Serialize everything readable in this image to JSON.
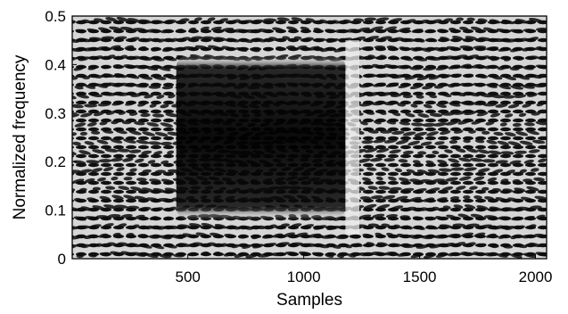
{
  "chart_data": {
    "type": "heatmap",
    "title": "",
    "xlabel": "Samples",
    "ylabel": "Normalized frequency",
    "xlim": [
      1,
      2048
    ],
    "ylim": [
      0,
      0.5
    ],
    "xticks": [
      {
        "value": 500,
        "label": "500"
      },
      {
        "value": 1000,
        "label": "1000"
      },
      {
        "value": 1500,
        "label": "1500"
      },
      {
        "value": 2000,
        "label": "2000"
      }
    ],
    "yticks": [
      {
        "value": 0,
        "label": "0"
      },
      {
        "value": 0.1,
        "label": "0.1"
      },
      {
        "value": 0.2,
        "label": "0.2"
      },
      {
        "value": 0.3,
        "label": "0.3"
      },
      {
        "value": 0.4,
        "label": "0.4"
      },
      {
        "value": 0.5,
        "label": "0.5"
      }
    ],
    "colormap": "grayscale",
    "colors": {
      "low": "#0a0a0a",
      "high": "#f0f0f0",
      "frame": "#000000"
    },
    "regions": [
      {
        "name": "dark-block",
        "x": [
          450,
          1180
        ],
        "y": [
          0.08,
          0.42
        ]
      },
      {
        "name": "bright-ridge",
        "x": [
          1180,
          1240
        ],
        "y": [
          0.05,
          0.45
        ]
      },
      {
        "name": "diffuse-region",
        "x": [
          1240,
          2048
        ],
        "y": [
          0.05,
          0.45
        ]
      }
    ],
    "grid": false,
    "legend": "none"
  }
}
